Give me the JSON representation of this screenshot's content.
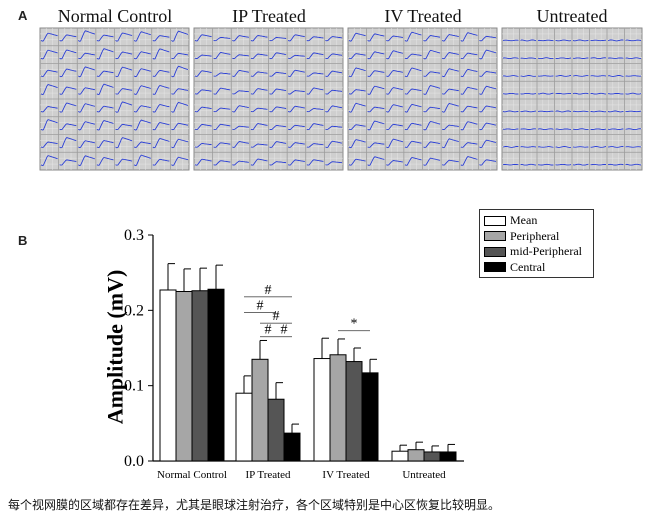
{
  "panel_a": {
    "letter": "A",
    "grids": [
      {
        "title": "Normal Control",
        "signal": "strong"
      },
      {
        "title": "IP Treated",
        "signal": "medium"
      },
      {
        "title": "IV Treated",
        "signal": "medium-strong"
      },
      {
        "title": "Untreated",
        "signal": "flat"
      }
    ]
  },
  "panel_b": {
    "letter": "B"
  },
  "caption": "每个视网膜的区域都存在差异，尤其是眼球注射治疗，各个区域特别是中心区恢复比较明显。",
  "colors": {
    "Mean": "#ffffff",
    "Peripheral": "#a6a6a6",
    "mid-Peripheral": "#555555",
    "Central": "#000000",
    "trace": "#2b3fd6",
    "grid_bg": "#cfcfcf"
  },
  "chart_data": {
    "type": "bar",
    "title": "",
    "xlabel": "",
    "ylabel": "Amplitude (mV)",
    "ylim": [
      0,
      0.3
    ],
    "yticks": [
      "0.0",
      "0.1",
      "0.2",
      "0.3"
    ],
    "categories": [
      "Normal Control",
      "IP Treated",
      "IV Treated",
      "Untreated"
    ],
    "series": [
      {
        "name": "Mean",
        "values": [
          0.227,
          0.09,
          0.136,
          0.013
        ],
        "errors": [
          0.035,
          0.023,
          0.027,
          0.008
        ]
      },
      {
        "name": "Peripheral",
        "values": [
          0.225,
          0.135,
          0.141,
          0.015
        ],
        "errors": [
          0.03,
          0.025,
          0.021,
          0.01
        ]
      },
      {
        "name": "mid-Peripheral",
        "values": [
          0.226,
          0.082,
          0.132,
          0.012
        ],
        "errors": [
          0.03,
          0.022,
          0.018,
          0.008
        ]
      },
      {
        "name": "Central",
        "values": [
          0.228,
          0.037,
          0.117,
          0.012
        ],
        "errors": [
          0.032,
          0.012,
          0.018,
          0.01
        ]
      }
    ],
    "legend_position": "top-right",
    "annotations": [
      {
        "symbol": "#",
        "group": "IP Treated",
        "from_series": "Mean",
        "to_series": "Central",
        "level": 0.218
      },
      {
        "symbol": "#",
        "group": "IP Treated",
        "from_series": "Mean",
        "to_series": "mid-Peripheral",
        "level": 0.197
      },
      {
        "symbol": "#",
        "group": "IP Treated",
        "from_series": "Peripheral",
        "to_series": "Central",
        "level": 0.183
      },
      {
        "symbol": "#",
        "group": "IP Treated",
        "from_series": "Peripheral",
        "to_series": "mid-Peripheral",
        "level": 0.165
      },
      {
        "symbol": "#",
        "group": "IP Treated",
        "from_series": "mid-Peripheral",
        "to_series": "Central",
        "level": 0.165
      },
      {
        "symbol": "*",
        "group": "IV Treated",
        "from_series": "Peripheral",
        "to_series": "Central",
        "level": 0.173
      }
    ]
  }
}
